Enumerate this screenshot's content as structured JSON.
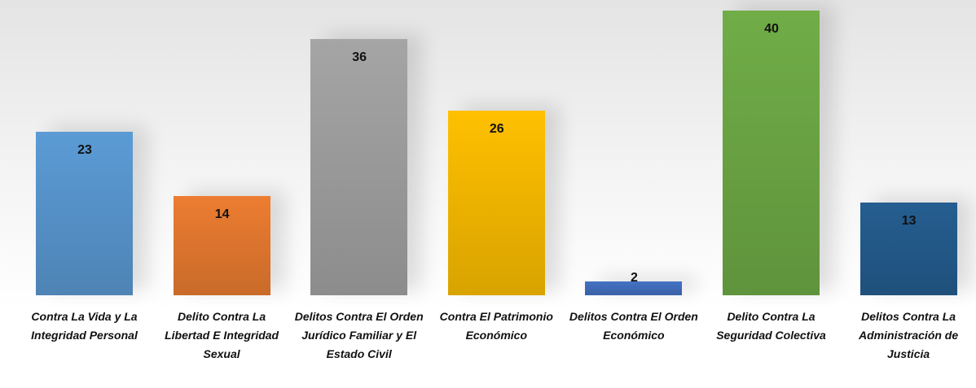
{
  "chart_data": {
    "type": "bar",
    "categories": [
      "Contra La Vida y La Integridad Personal",
      "Delito Contra La Libertad E Integridad Sexual",
      "Delitos Contra El Orden Jurídico Familiar y El Estado Civil",
      "Contra El Patrimonio Económico",
      "Delitos Contra El Orden Económico",
      "Delito Contra La Seguridad Colectiva",
      "Delitos Contra La Administración de Justicia"
    ],
    "values": [
      23,
      14,
      36,
      26,
      2,
      40,
      13
    ],
    "colors": [
      "#5b9bd5",
      "#ed7d31",
      "#a5a5a5",
      "#ffc000",
      "#4472c4",
      "#70ad47",
      "#255e91"
    ]
  }
}
